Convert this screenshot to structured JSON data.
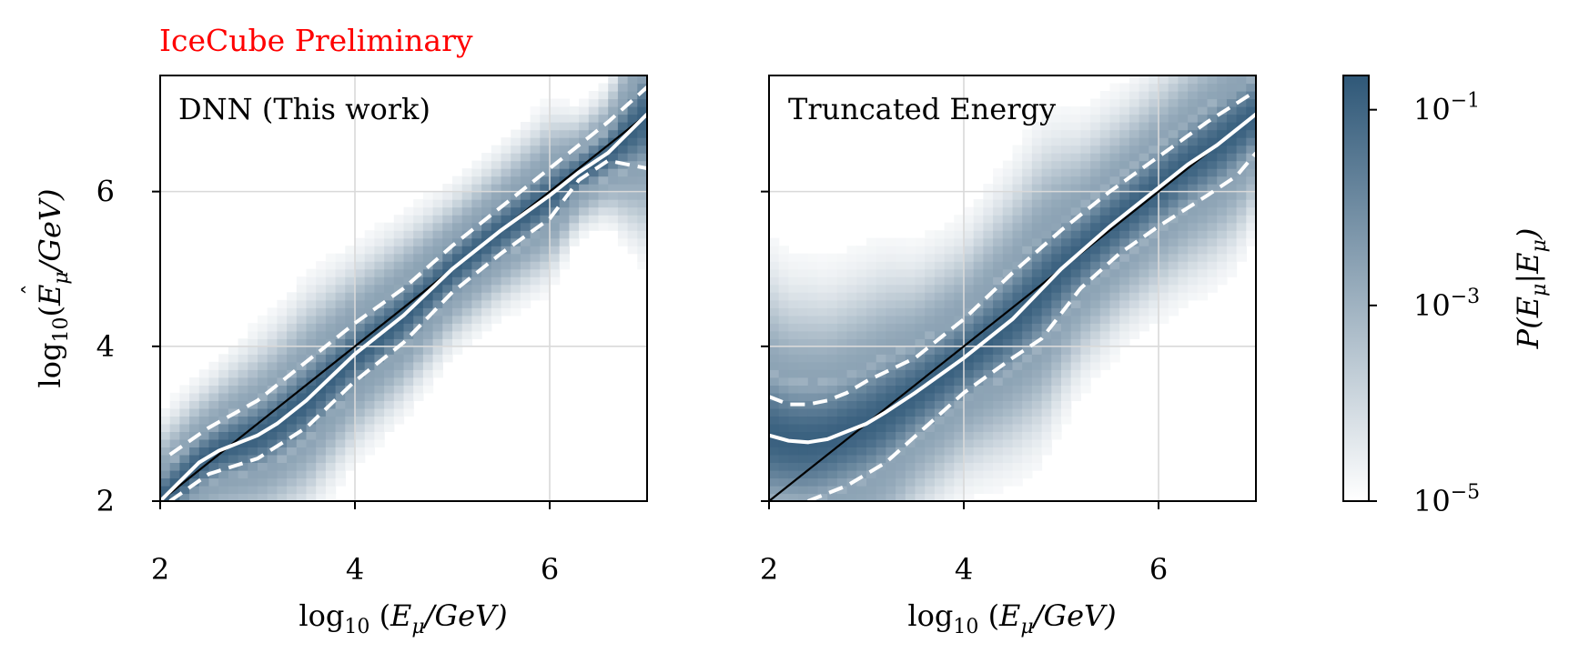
{
  "colors": {
    "cmap_high": "#2f5878",
    "cmap_low": "#ffffff",
    "watermark": "#ff0000",
    "diagonal": "#000000",
    "median": "#ffffff",
    "grid": "#d9d9d9"
  },
  "watermark_text": "IceCube Preliminary",
  "ylabel": {
    "prefix": "log",
    "sub": "10",
    "open": "(",
    "hat_var": "E",
    "var_sub": "μ",
    "rest": "/GeV)"
  },
  "xlabel": {
    "prefix": "log",
    "sub": "10",
    "open": "(",
    "var": "E",
    "var_sub": "μ",
    "rest": "/GeV)"
  },
  "colorbar": {
    "label_prefix": "P(",
    "label_hat_var": "E",
    "label_var_sub": "μ",
    "label_mid": "|E",
    "label_var_sub2": "μ",
    "label_close": ")",
    "ticks": [
      {
        "base": "10",
        "exp": "−1",
        "value": -1
      },
      {
        "base": "10",
        "exp": "−3",
        "value": -3
      },
      {
        "base": "10",
        "exp": "−5",
        "value": -5
      }
    ],
    "log_range": [
      -5,
      -0.65
    ]
  },
  "chart_data": [
    {
      "type": "heatmap",
      "title": "DNN (This work)",
      "xlim": [
        2,
        7
      ],
      "ylim": [
        2,
        7.5
      ],
      "xticks": [
        "2",
        "4",
        "6"
      ],
      "yticks": [
        "2",
        "4",
        "6"
      ],
      "diagonal": [
        [
          2,
          2
        ],
        [
          7,
          7
        ]
      ],
      "median": {
        "x": [
          2.0,
          2.2,
          2.4,
          2.6,
          2.8,
          3.0,
          3.2,
          3.5,
          4.0,
          4.5,
          5.0,
          5.5,
          6.0,
          6.3,
          6.6,
          7.0
        ],
        "y": [
          2.0,
          2.25,
          2.5,
          2.65,
          2.75,
          2.85,
          3.0,
          3.3,
          3.9,
          4.4,
          5.0,
          5.5,
          5.95,
          6.25,
          6.5,
          7.0
        ]
      },
      "upper_band": {
        "x": [
          2.1,
          2.5,
          3.0,
          3.5,
          4.0,
          4.5,
          5.0,
          5.5,
          6.0,
          6.3,
          6.6,
          7.0
        ],
        "y": [
          2.6,
          2.95,
          3.3,
          3.8,
          4.3,
          4.75,
          5.3,
          5.8,
          6.3,
          6.6,
          6.9,
          7.35
        ]
      },
      "lower_band": {
        "x": [
          2.1,
          2.5,
          3.0,
          3.5,
          4.0,
          4.5,
          5.0,
          5.5,
          6.0,
          6.3,
          6.6,
          7.0
        ],
        "y": [
          2.0,
          2.35,
          2.55,
          2.95,
          3.55,
          4.05,
          4.7,
          5.2,
          5.65,
          6.15,
          6.4,
          6.3
        ]
      },
      "width_scale": 1.0
    },
    {
      "type": "heatmap",
      "title": "Truncated Energy",
      "xlim": [
        2,
        7
      ],
      "ylim": [
        2,
        7.5
      ],
      "xticks": [
        "2",
        "4",
        "6"
      ],
      "yticks": [],
      "diagonal": [
        [
          2,
          2
        ],
        [
          7,
          7
        ]
      ],
      "median": {
        "x": [
          2.0,
          2.2,
          2.4,
          2.6,
          2.8,
          3.0,
          3.2,
          3.5,
          4.0,
          4.5,
          5.0,
          5.5,
          6.0,
          6.3,
          6.6,
          7.0
        ],
        "y": [
          2.85,
          2.78,
          2.76,
          2.8,
          2.9,
          3.0,
          3.15,
          3.4,
          3.85,
          4.35,
          5.0,
          5.55,
          6.05,
          6.35,
          6.6,
          7.0
        ]
      },
      "upper_band": {
        "x": [
          2.0,
          2.2,
          2.4,
          2.6,
          2.8,
          3.0,
          3.5,
          4.0,
          4.5,
          5.0,
          5.5,
          6.0,
          6.5,
          7.0
        ],
        "y": [
          3.35,
          3.25,
          3.25,
          3.3,
          3.4,
          3.55,
          3.85,
          4.35,
          4.95,
          5.5,
          6.0,
          6.45,
          6.9,
          7.3
        ]
      },
      "lower_band": {
        "x": [
          2.4,
          2.8,
          3.2,
          3.6,
          4.0,
          4.5,
          4.8,
          5.2,
          5.6,
          6.0,
          6.5,
          6.8,
          7.0
        ],
        "y": [
          2.0,
          2.2,
          2.5,
          2.95,
          3.4,
          3.85,
          4.1,
          4.75,
          5.2,
          5.55,
          5.95,
          6.2,
          6.5
        ]
      },
      "width_scale": 1.5
    }
  ]
}
